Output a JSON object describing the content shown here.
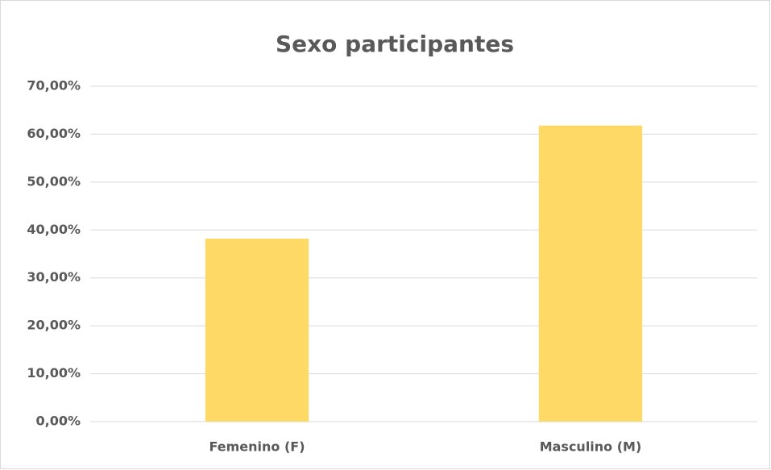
{
  "chart_data": {
    "type": "bar",
    "title": "Sexo participantes",
    "categories": [
      "Femenino (F)",
      "Masculino (M)"
    ],
    "values": [
      38.2,
      61.8
    ],
    "color": "#ffd966",
    "ylim": [
      0,
      70
    ],
    "yticks": [
      {
        "value": 0,
        "label": "0,00%"
      },
      {
        "value": 10,
        "label": "10,00%"
      },
      {
        "value": 20,
        "label": "20,00%"
      },
      {
        "value": 30,
        "label": "30,00%"
      },
      {
        "value": 40,
        "label": "40,00%"
      },
      {
        "value": 50,
        "label": "50,00%"
      },
      {
        "value": 60,
        "label": "60,00%"
      },
      {
        "value": 70,
        "label": "70,00%"
      }
    ],
    "grid": true
  }
}
